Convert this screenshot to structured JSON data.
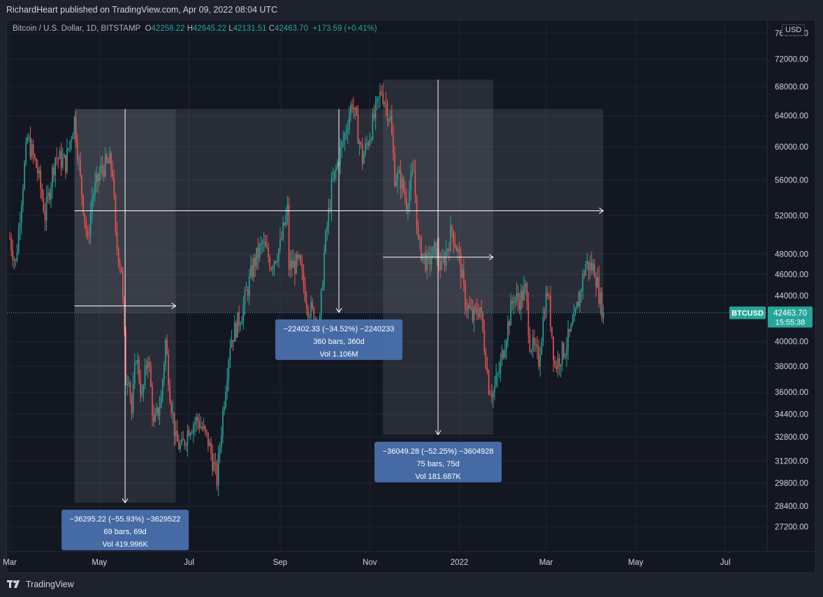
{
  "header": {
    "published": "RichardHeart published on TradingView.com, Apr 09, 2022 08:04 UTC"
  },
  "legend": {
    "symbol": "Bitcoin / U.S. Dollar, 1D, BITSTAMP",
    "o_label": "O",
    "o_value": "42258.22",
    "h_label": "H",
    "h_value": "42645.22",
    "l_label": "L",
    "l_value": "42131.51",
    "c_label": "C",
    "c_value": "42463.70",
    "change": "+173.59 (+0.41%)"
  },
  "currency": "USD",
  "footer": {
    "brand": "TradingView"
  },
  "colors": {
    "up": "#26a69a",
    "down": "#ef5350",
    "background": "#131722",
    "box_fill": "#4a72b0",
    "price_tag": "#26a69a"
  },
  "chart_data": {
    "type": "candlestick",
    "symbol": "BTCUSD",
    "interval": "1D",
    "exchange": "BITSTAMP",
    "y_scale": "log",
    "ylim": [
      26500,
      76500
    ],
    "y_ticks": [
      "76000.00",
      "72000.00",
      "68000.00",
      "64000.00",
      "60000.00",
      "56000.00",
      "52000.00",
      "48000.00",
      "46000.00",
      "44000.00",
      "40000.00",
      "38000.00",
      "36000.00",
      "34400.00",
      "32800.00",
      "31200.00",
      "29800.00",
      "28400.00",
      "27200.00"
    ],
    "x_ticks": [
      {
        "label": "Mar",
        "date": "2021-03-01"
      },
      {
        "label": "May",
        "date": "2021-05-01"
      },
      {
        "label": "Jul",
        "date": "2021-07-01"
      },
      {
        "label": "Sep",
        "date": "2021-09-01"
      },
      {
        "label": "Nov",
        "date": "2021-11-01"
      },
      {
        "label": "2022",
        "date": "2022-01-01"
      },
      {
        "label": "Mar",
        "date": "2022-03-01"
      },
      {
        "label": "May",
        "date": "2022-05-01"
      },
      {
        "label": "Jul",
        "date": "2022-07-01"
      }
    ],
    "xlim": [
      "2021-03-01",
      "2022-07-31"
    ],
    "last_price": {
      "symbol": "BTCUSD",
      "price": 42463.7,
      "price_label": "42463.70",
      "countdown": "15:55:38"
    },
    "price_path": [
      [
        "2021-03-01",
        49600
      ],
      [
        "2021-03-05",
        47000
      ],
      [
        "2021-03-13",
        61000
      ],
      [
        "2021-03-20",
        57000
      ],
      [
        "2021-03-25",
        52000
      ],
      [
        "2021-04-01",
        58800
      ],
      [
        "2021-04-08",
        58000
      ],
      [
        "2021-04-14",
        63500
      ],
      [
        "2021-04-18",
        56000
      ],
      [
        "2021-04-23",
        49000
      ],
      [
        "2021-04-26",
        54000
      ],
      [
        "2021-05-03",
        57500
      ],
      [
        "2021-05-08",
        58000
      ],
      [
        "2021-05-10",
        57000
      ],
      [
        "2021-05-12",
        49500
      ],
      [
        "2021-05-16",
        46500
      ],
      [
        "2021-05-19",
        37000
      ],
      [
        "2021-05-21",
        37500
      ],
      [
        "2021-05-23",
        34500
      ],
      [
        "2021-05-26",
        39000
      ],
      [
        "2021-05-30",
        35500
      ],
      [
        "2021-06-03",
        39000
      ],
      [
        "2021-06-07",
        33500
      ],
      [
        "2021-06-12",
        35500
      ],
      [
        "2021-06-15",
        40000
      ],
      [
        "2021-06-18",
        36000
      ],
      [
        "2021-06-22",
        32500
      ],
      [
        "2021-06-26",
        32000
      ],
      [
        "2021-07-01",
        33500
      ],
      [
        "2021-07-07",
        34000
      ],
      [
        "2021-07-14",
        32500
      ],
      [
        "2021-07-20",
        30000
      ],
      [
        "2021-07-24",
        34500
      ],
      [
        "2021-07-29",
        40000
      ],
      [
        "2021-08-06",
        42500
      ],
      [
        "2021-08-14",
        47000
      ],
      [
        "2021-08-20",
        49000
      ],
      [
        "2021-08-26",
        47000
      ],
      [
        "2021-09-01",
        48800
      ],
      [
        "2021-09-06",
        52500
      ],
      [
        "2021-09-07",
        46800
      ],
      [
        "2021-09-14",
        47000
      ],
      [
        "2021-09-20",
        43000
      ],
      [
        "2021-09-28",
        41500
      ],
      [
        "2021-10-01",
        48000
      ],
      [
        "2021-10-06",
        55000
      ],
      [
        "2021-10-15",
        61500
      ],
      [
        "2021-10-20",
        66000
      ],
      [
        "2021-10-27",
        58500
      ],
      [
        "2021-11-01",
        61500
      ],
      [
        "2021-11-09",
        67500
      ],
      [
        "2021-11-15",
        63500
      ],
      [
        "2021-11-18",
        56500
      ],
      [
        "2021-11-22",
        56000
      ],
      [
        "2021-11-26",
        53500
      ],
      [
        "2021-12-01",
        57000
      ],
      [
        "2021-12-04",
        49000
      ],
      [
        "2021-12-10",
        47000
      ],
      [
        "2021-12-16",
        48500
      ],
      [
        "2021-12-20",
        46500
      ],
      [
        "2021-12-27",
        50500
      ],
      [
        "2022-01-01",
        47500
      ],
      [
        "2022-01-05",
        43500
      ],
      [
        "2022-01-10",
        42000
      ],
      [
        "2022-01-15",
        43000
      ],
      [
        "2022-01-21",
        36500
      ],
      [
        "2022-01-24",
        36000
      ],
      [
        "2022-01-28",
        37500
      ],
      [
        "2022-02-07",
        44000
      ],
      [
        "2022-02-10",
        43500
      ],
      [
        "2022-02-15",
        44500
      ],
      [
        "2022-02-18",
        40000
      ],
      [
        "2022-02-24",
        38500
      ],
      [
        "2022-02-28",
        43000
      ],
      [
        "2022-03-02",
        44500
      ],
      [
        "2022-03-07",
        38000
      ],
      [
        "2022-03-14",
        39500
      ],
      [
        "2022-03-20",
        41500
      ],
      [
        "2022-03-28",
        47000
      ],
      [
        "2022-04-03",
        46500
      ],
      [
        "2022-04-07",
        43500
      ],
      [
        "2022-04-09",
        42463
      ]
    ],
    "measurements": [
      {
        "from": "2021-04-14",
        "to": "2021-06-22",
        "from_price": 64900,
        "to_price": 28600,
        "label_line1": "−36295.22 (−55.93%) −3629522",
        "label_line2": "69 bars, 69d",
        "label_line3": "Vol 419.996K"
      },
      {
        "from": "2021-04-14",
        "to": "2022-04-09",
        "from_price": 64900,
        "to_price": 42500,
        "label_line1": "−22402.33 (−34.52%) −2240233",
        "label_line2": "360 bars, 360d",
        "label_line3": "Vol 1.106M"
      },
      {
        "from": "2021-11-10",
        "to": "2022-01-24",
        "from_price": 69000,
        "to_price": 32950,
        "label_line1": "−36049.28 (−52.25%) −3604928",
        "label_line2": "75 bars, 75d",
        "label_line3": "Vol 181.687K"
      }
    ]
  }
}
